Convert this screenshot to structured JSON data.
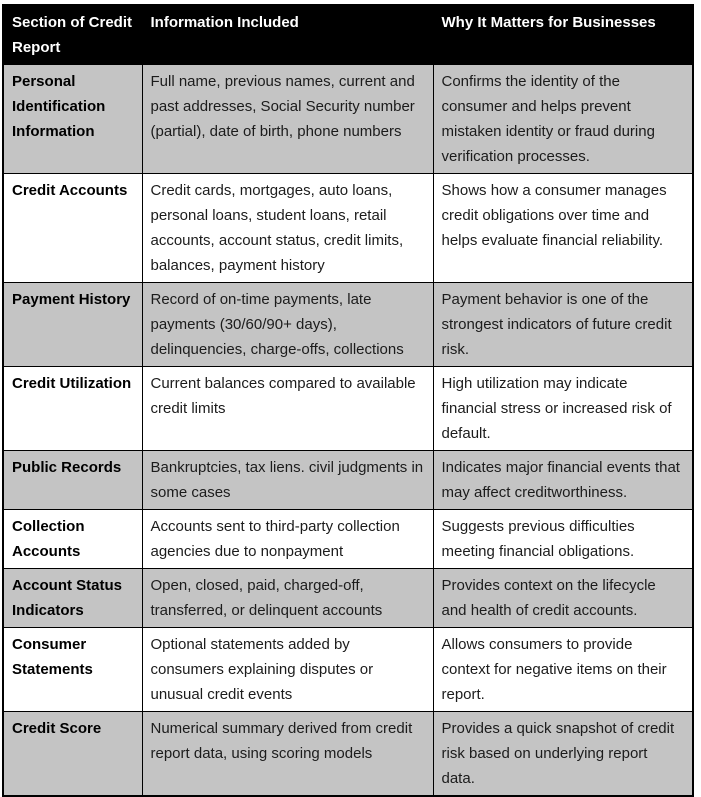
{
  "table": {
    "headers": [
      "Section of Credit Report",
      "Information Included",
      "Why It Matters for Businesses"
    ],
    "rows": [
      {
        "section": "Personal Identification Information",
        "info": "Full name, previous names, current and past addresses, Social Security number (partial), date of birth, phone numbers",
        "why": "Confirms the identity of the consumer and helps prevent mistaken identity or fraud during verification processes."
      },
      {
        "section": "Credit Accounts",
        "info": "Credit cards, mortgages, auto loans, personal loans, student loans, retail accounts, account status, credit limits, balances, payment history",
        "why": "Shows how a consumer manages credit obligations over time and helps evaluate financial reliability."
      },
      {
        "section": "Payment History",
        "info": "Record of on-time payments, late payments (30/60/90+ days), delinquencies, charge-offs, collections",
        "why": "Payment behavior is one of the strongest indicators of future credit risk."
      },
      {
        "section": "Credit Utilization",
        "info": "Current balances compared to available credit limits",
        "why": "High utilization may indicate financial stress or increased risk of default."
      },
      {
        "section": "Public Records",
        "info": "Bankruptcies, tax liens. civil judgments in some cases",
        "why": "Indicates major financial events that may affect creditworthiness."
      },
      {
        "section": "Collection Accounts",
        "info": "Accounts sent to third-party collection agencies due to nonpayment",
        "why": "Suggests previous difficulties meeting financial obligations."
      },
      {
        "section": "Account Status Indicators",
        "info": "Open, closed, paid, charged-off, transferred, or delinquent accounts",
        "why": "Provides context on the lifecycle and health of credit accounts."
      },
      {
        "section": "Consumer Statements",
        "info": "Optional statements added by consumers explaining disputes or unusual credit events",
        "why": "Allows consumers to provide context for negative items on their report."
      },
      {
        "section": "Credit Score",
        "info": "Numerical summary derived from credit report data, using scoring models",
        "why": "Provides a quick snapshot of credit risk based on underlying report data."
      }
    ]
  },
  "colors": {
    "header_bg": "#000000",
    "header_text": "#ffffff",
    "row_shaded": "#c4c4c4",
    "row_plain": "#ffffff",
    "border": "#000000",
    "body_text": "#1c1c1c"
  }
}
